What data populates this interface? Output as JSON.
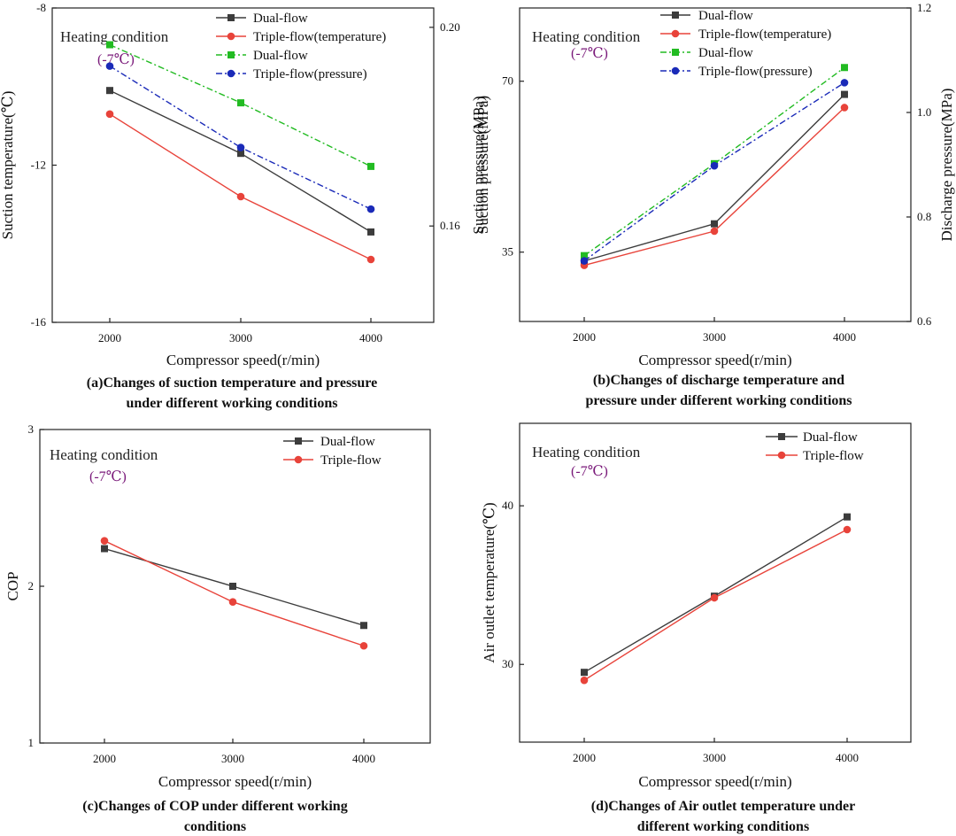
{
  "chart_data": [
    {
      "id": "a",
      "type": "line",
      "categories": [
        "2000",
        "3000",
        "4000"
      ],
      "xlabel": "Compressor speed(r/min)",
      "ylabel": "Suction temperature(℃)",
      "ylabel_right": "Suction pressure(MPa)",
      "ylim": [
        -16,
        -8
      ],
      "yticks": [
        "-8",
        "-12",
        "-16"
      ],
      "ylim_right": [
        0.1406,
        0.2039
      ],
      "yticks_right": [
        "0.20",
        "0.16"
      ],
      "annotation": [
        "Heating condition",
        "(-7℃)"
      ],
      "caption": [
        "(a)Changes of suction temperature and pressure",
        "under different working conditions"
      ],
      "series": [
        {
          "name": "Dual-flow",
          "axis": "left",
          "color": "#3c3c3c",
          "marker": "square",
          "dash": "",
          "values": [
            -10.1,
            -11.7,
            -13.7
          ]
        },
        {
          "name": "Triple-flow(temperature)",
          "axis": "left",
          "color": "#e8433a",
          "marker": "circle",
          "dash": "",
          "values": [
            -10.7,
            -12.8,
            -14.4
          ]
        },
        {
          "name": "Dual-flow",
          "axis": "right",
          "color": "#22bb22",
          "marker": "square",
          "dash": "7,3,2,3",
          "values": [
            0.1965,
            0.1848,
            0.172
          ]
        },
        {
          "name": "Triple-flow(pressure)",
          "axis": "right",
          "color": "#1a2ab8",
          "marker": "circle",
          "dash": "7,3,2,3",
          "values": [
            0.1922,
            0.1758,
            0.1634
          ]
        }
      ]
    },
    {
      "id": "b",
      "type": "line",
      "categories": [
        "2000",
        "3000",
        "4000"
      ],
      "xlabel": "Compressor speed(r/min)",
      "ylabel": "Suction pressure(MPa)",
      "ylabel_right": "Discharge pressure(MPa)",
      "ylim": [
        20.8,
        85
      ],
      "yticks": [
        "70",
        "35"
      ],
      "ylim_right": [
        0.6,
        1.2
      ],
      "yticks_right": [
        "1.2",
        "1.0",
        "0.8",
        "0.6"
      ],
      "annotation": [
        "Heating condition",
        "(-7℃)"
      ],
      "caption": [
        "(b)Changes of discharge temperature and",
        "pressure under different working conditions"
      ],
      "series": [
        {
          "name": "Dual-flow",
          "axis": "left",
          "color": "#3c3c3c",
          "marker": "square",
          "dash": "",
          "values": [
            33.2,
            40.8,
            67.3
          ]
        },
        {
          "name": "Triple-flow(temperature)",
          "axis": "left",
          "color": "#e8433a",
          "marker": "circle",
          "dash": "",
          "values": [
            32.3,
            39.3,
            64.6
          ]
        },
        {
          "name": "Dual-flow",
          "axis": "right",
          "color": "#22bb22",
          "marker": "square",
          "dash": "7,3,2,3",
          "values": [
            0.726,
            0.902,
            1.086
          ]
        },
        {
          "name": "Triple-flow(pressure)",
          "axis": "right",
          "color": "#1a2ab8",
          "marker": "circle",
          "dash": "7,3,2,3",
          "values": [
            0.716,
            0.898,
            1.057
          ]
        }
      ]
    },
    {
      "id": "c",
      "type": "line",
      "categories": [
        "2000",
        "3000",
        "4000"
      ],
      "xlabel": "Compressor speed(r/min)",
      "ylabel": "COP",
      "ylim": [
        1,
        3
      ],
      "yticks": [
        "3",
        "2",
        "1"
      ],
      "annotation": [
        "Heating condition",
        "(-7℃)"
      ],
      "caption": [
        "(c)Changes of COP under different working",
        "conditions"
      ],
      "series": [
        {
          "name": "Dual-flow",
          "axis": "left",
          "color": "#3c3c3c",
          "marker": "square",
          "dash": "",
          "values": [
            2.24,
            2.0,
            1.75
          ]
        },
        {
          "name": "Triple-flow",
          "axis": "left",
          "color": "#e8433a",
          "marker": "circle",
          "dash": "",
          "values": [
            2.29,
            1.9,
            1.62
          ]
        }
      ]
    },
    {
      "id": "d",
      "type": "line",
      "categories": [
        "2000",
        "3000",
        "4000"
      ],
      "xlabel": "Compressor speed(r/min)",
      "ylabel": "Air outlet temperature(℃)",
      "ylim": [
        25.1,
        45.2
      ],
      "yticks": [
        "40",
        "30"
      ],
      "annotation": [
        "Heating condition",
        "(-7℃)"
      ],
      "caption": [
        "(d)Changes of Air outlet temperature under",
        "different working conditions"
      ],
      "series": [
        {
          "name": "Dual-flow",
          "axis": "left",
          "color": "#3c3c3c",
          "marker": "square",
          "dash": "",
          "values": [
            29.5,
            34.3,
            39.3
          ]
        },
        {
          "name": "Triple-flow",
          "axis": "left",
          "color": "#e8433a",
          "marker": "circle",
          "dash": "",
          "values": [
            29.0,
            34.2,
            38.5
          ]
        }
      ]
    }
  ]
}
